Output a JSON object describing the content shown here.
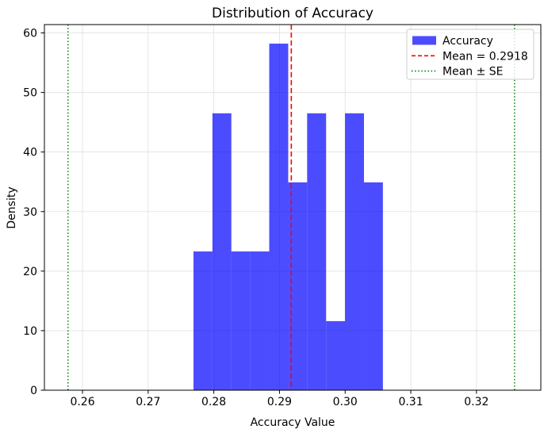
{
  "chart_data": {
    "type": "histogram",
    "title": "Distribution of Accuracy",
    "xlabel": "Accuracy Value",
    "ylabel": "Density",
    "xlim": [
      0.2542,
      0.3298
    ],
    "ylim": [
      0,
      61.4
    ],
    "grid": true,
    "grid_color": "#e5e5e5",
    "spine_color": "#000000",
    "xticks": [
      {
        "value": 0.26,
        "label": "0.26"
      },
      {
        "value": 0.27,
        "label": "0.27"
      },
      {
        "value": 0.28,
        "label": "0.28"
      },
      {
        "value": 0.29,
        "label": "0.29"
      },
      {
        "value": 0.3,
        "label": "0.30"
      },
      {
        "value": 0.31,
        "label": "0.31"
      },
      {
        "value": 0.32,
        "label": "0.32"
      }
    ],
    "yticks": [
      {
        "value": 0,
        "label": "0"
      },
      {
        "value": 10,
        "label": "10"
      },
      {
        "value": 20,
        "label": "20"
      },
      {
        "value": 30,
        "label": "30"
      },
      {
        "value": 40,
        "label": "40"
      },
      {
        "value": 50,
        "label": "50"
      },
      {
        "value": 60,
        "label": "60"
      }
    ],
    "histogram": {
      "label": "Accuracy",
      "color": "#0000ff",
      "alpha": 0.7,
      "bin_edges": [
        0.2769,
        0.27979,
        0.28267,
        0.28556,
        0.28844,
        0.29133,
        0.29421,
        0.2971,
        0.29998,
        0.30287,
        0.30575
      ],
      "densities": [
        23.3,
        46.5,
        23.3,
        23.3,
        58.2,
        34.9,
        46.5,
        11.6,
        46.5,
        34.9
      ]
    },
    "mean_line": {
      "x": 0.2918,
      "color": "#ff0000",
      "linestyle": "dashed",
      "label": "Mean = 0.2918"
    },
    "se_lines": {
      "xs": [
        0.2578,
        0.3258
      ],
      "color": "#008000",
      "linestyle": "dotted",
      "label": "Mean ± SE"
    },
    "legend": {
      "position": "upper right",
      "items": [
        {
          "swatch": "patch",
          "color": "#0000ff",
          "alpha": 0.7,
          "label": "Accuracy"
        },
        {
          "swatch": "dashed-line",
          "color": "#ff0000",
          "label": "Mean = 0.2918"
        },
        {
          "swatch": "dotted-line",
          "color": "#008000",
          "label": "Mean ± SE"
        }
      ]
    }
  }
}
